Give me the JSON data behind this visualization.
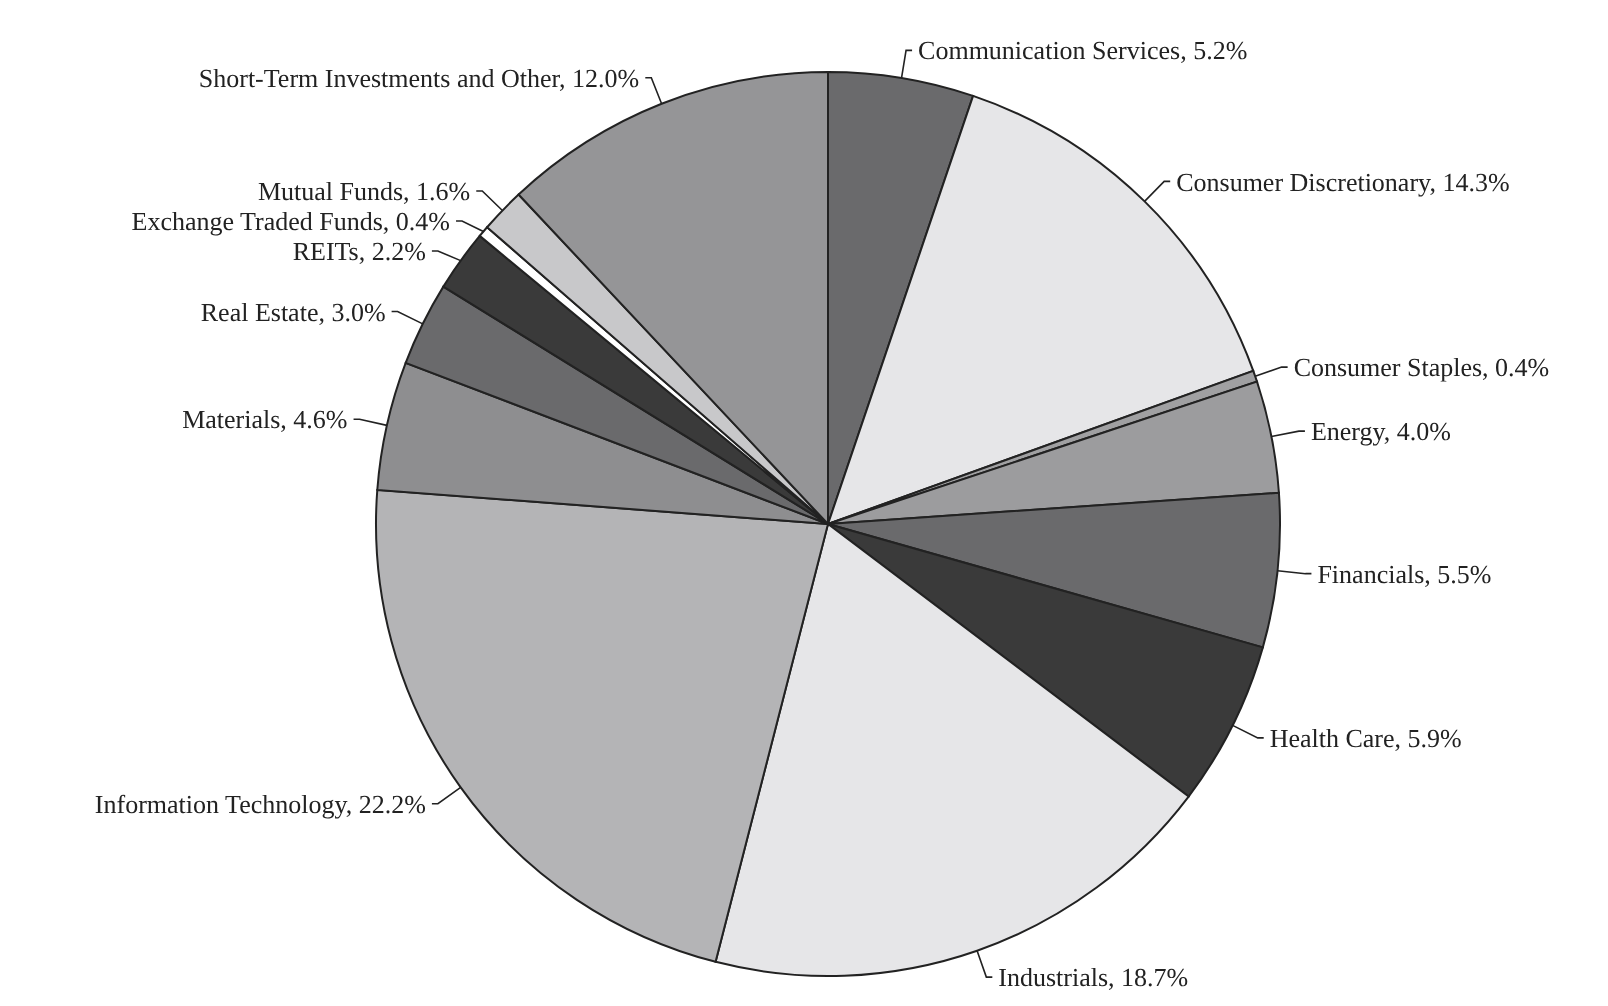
{
  "chart_data": {
    "type": "pie",
    "categories": [
      "Communication Services",
      "Consumer Discretionary",
      "Consumer Staples",
      "Energy",
      "Financials",
      "Health Care",
      "Industrials",
      "Information Technology",
      "Materials",
      "Real Estate",
      "REITs",
      "Exchange Traded Funds",
      "Mutual Funds",
      "Short-Term Investments and Other"
    ],
    "values": [
      5.2,
      14.3,
      0.4,
      4.0,
      5.5,
      5.9,
      18.7,
      22.2,
      4.6,
      3.0,
      2.2,
      0.4,
      1.6,
      12.0
    ],
    "value_labels": [
      "5.2%",
      "14.3%",
      "0.4%",
      "4.0%",
      "5.5%",
      "5.9%",
      "18.7%",
      "22.2%",
      "4.6%",
      "3.0%",
      "2.2%",
      "0.4%",
      "1.6%",
      "12.0%"
    ],
    "colors": [
      "#6a6a6c",
      "#e6e6e8",
      "#a0a0a2",
      "#9c9c9e",
      "#6a6a6c",
      "#3a3a3a",
      "#e6e6e8",
      "#b4b4b6",
      "#8e8e90",
      "#6a6a6c",
      "#3a3a3a",
      "#ffffff",
      "#c8c8ca",
      "#959597"
    ]
  }
}
